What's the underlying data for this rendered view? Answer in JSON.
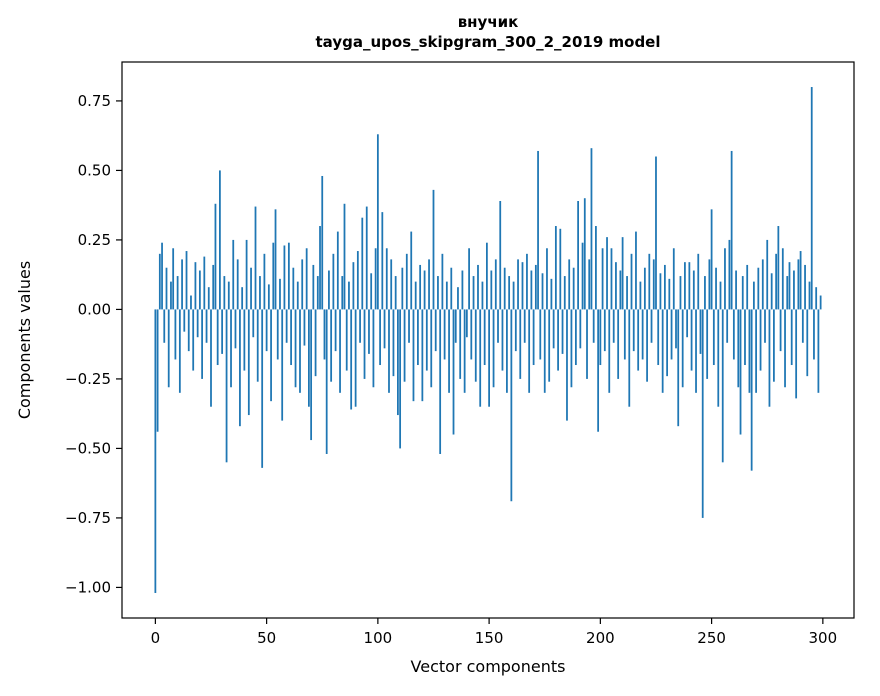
{
  "chart_data": {
    "type": "bar",
    "title": "внучик",
    "subtitle": "tayga_upos_skipgram_300_2_2019 model",
    "xlabel": "Vector components",
    "ylabel": "Components values",
    "xlim": [
      -15,
      314
    ],
    "ylim": [
      -1.11,
      0.89
    ],
    "xticks": [
      0,
      50,
      100,
      150,
      200,
      250,
      300
    ],
    "yticks": [
      -1.0,
      -0.75,
      -0.5,
      -0.25,
      0.0,
      0.25,
      0.5,
      0.75
    ],
    "bar_color": "#1f77b4",
    "grid": false,
    "legend": false,
    "values": [
      -1.02,
      -0.44,
      0.2,
      0.24,
      -0.12,
      0.15,
      -0.28,
      0.1,
      0.22,
      -0.18,
      0.12,
      -0.3,
      0.18,
      -0.08,
      0.21,
      -0.15,
      0.05,
      -0.22,
      0.17,
      -0.1,
      0.14,
      -0.25,
      0.19,
      -0.12,
      0.08,
      -0.35,
      0.16,
      0.38,
      -0.2,
      0.5,
      -0.16,
      0.12,
      -0.55,
      0.1,
      -0.28,
      0.25,
      -0.14,
      0.18,
      -0.42,
      0.08,
      -0.22,
      0.25,
      -0.38,
      0.15,
      -0.1,
      0.37,
      -0.26,
      0.12,
      -0.57,
      0.2,
      -0.15,
      0.09,
      -0.33,
      0.24,
      0.36,
      -0.18,
      0.11,
      -0.4,
      0.23,
      -0.12,
      0.24,
      -0.2,
      0.15,
      -0.28,
      0.1,
      -0.3,
      0.18,
      -0.13,
      0.22,
      -0.35,
      -0.47,
      0.16,
      -0.24,
      0.12,
      0.3,
      0.48,
      -0.18,
      -0.52,
      0.14,
      -0.26,
      0.2,
      -0.15,
      0.28,
      -0.3,
      0.12,
      0.38,
      -0.22,
      0.1,
      -0.36,
      0.17,
      -0.35,
      0.21,
      -0.12,
      0.33,
      -0.25,
      0.37,
      -0.16,
      0.13,
      -0.28,
      0.22,
      0.63,
      -0.2,
      0.35,
      -0.14,
      0.22,
      -0.3,
      0.18,
      -0.24,
      0.12,
      -0.38,
      -0.5,
      0.15,
      -0.26,
      0.2,
      -0.12,
      0.28,
      -0.33,
      0.1,
      -0.2,
      0.16,
      -0.33,
      0.14,
      -0.22,
      0.18,
      -0.28,
      0.43,
      -0.15,
      0.12,
      -0.52,
      0.2,
      -0.18,
      0.1,
      -0.3,
      0.15,
      -0.45,
      -0.12,
      0.08,
      -0.25,
      0.14,
      -0.3,
      -0.1,
      0.22,
      -0.18,
      0.12,
      -0.26,
      0.16,
      -0.35,
      0.1,
      -0.2,
      0.24,
      -0.35,
      0.14,
      -0.28,
      0.18,
      -0.12,
      0.39,
      -0.22,
      0.15,
      -0.3,
      0.12,
      -0.69,
      0.1,
      -0.15,
      0.18,
      -0.25,
      0.17,
      -0.12,
      0.2,
      -0.3,
      0.14,
      -0.2,
      0.16,
      0.57,
      -0.18,
      0.13,
      -0.3,
      0.22,
      -0.26,
      0.11,
      -0.14,
      0.3,
      -0.22,
      0.29,
      -0.16,
      0.12,
      -0.4,
      0.18,
      -0.28,
      0.15,
      -0.2,
      0.39,
      -0.14,
      0.24,
      0.4,
      -0.25,
      0.18,
      0.58,
      -0.12,
      0.3,
      -0.44,
      -0.2,
      0.22,
      -0.15,
      0.26,
      -0.3,
      0.22,
      -0.12,
      0.17,
      -0.25,
      0.14,
      0.26,
      -0.18,
      0.12,
      -0.35,
      0.2,
      -0.15,
      0.28,
      -0.22,
      0.1,
      -0.18,
      0.15,
      -0.26,
      0.2,
      -0.12,
      0.18,
      0.55,
      -0.2,
      0.13,
      -0.3,
      0.16,
      -0.24,
      0.11,
      -0.18,
      0.22,
      -0.14,
      -0.42,
      0.12,
      -0.28,
      0.17,
      -0.1,
      0.17,
      -0.22,
      0.14,
      -0.3,
      0.2,
      -0.16,
      -0.75,
      0.12,
      -0.25,
      0.18,
      0.36,
      -0.2,
      0.15,
      -0.35,
      0.1,
      -0.55,
      0.22,
      -0.12,
      0.25,
      0.57,
      -0.18,
      0.14,
      -0.28,
      -0.45,
      0.12,
      -0.2,
      0.16,
      -0.3,
      -0.58,
      0.1,
      -0.3,
      0.15,
      -0.22,
      0.18,
      -0.12,
      0.25,
      -0.35,
      0.13,
      -0.26,
      0.2,
      0.3,
      -0.15,
      0.22,
      -0.28,
      0.12,
      0.17,
      -0.2,
      0.14,
      -0.32,
      0.18,
      0.21,
      -0.12,
      0.16,
      -0.24,
      0.1,
      0.8,
      -0.18,
      0.08,
      -0.3,
      0.05
    ]
  }
}
